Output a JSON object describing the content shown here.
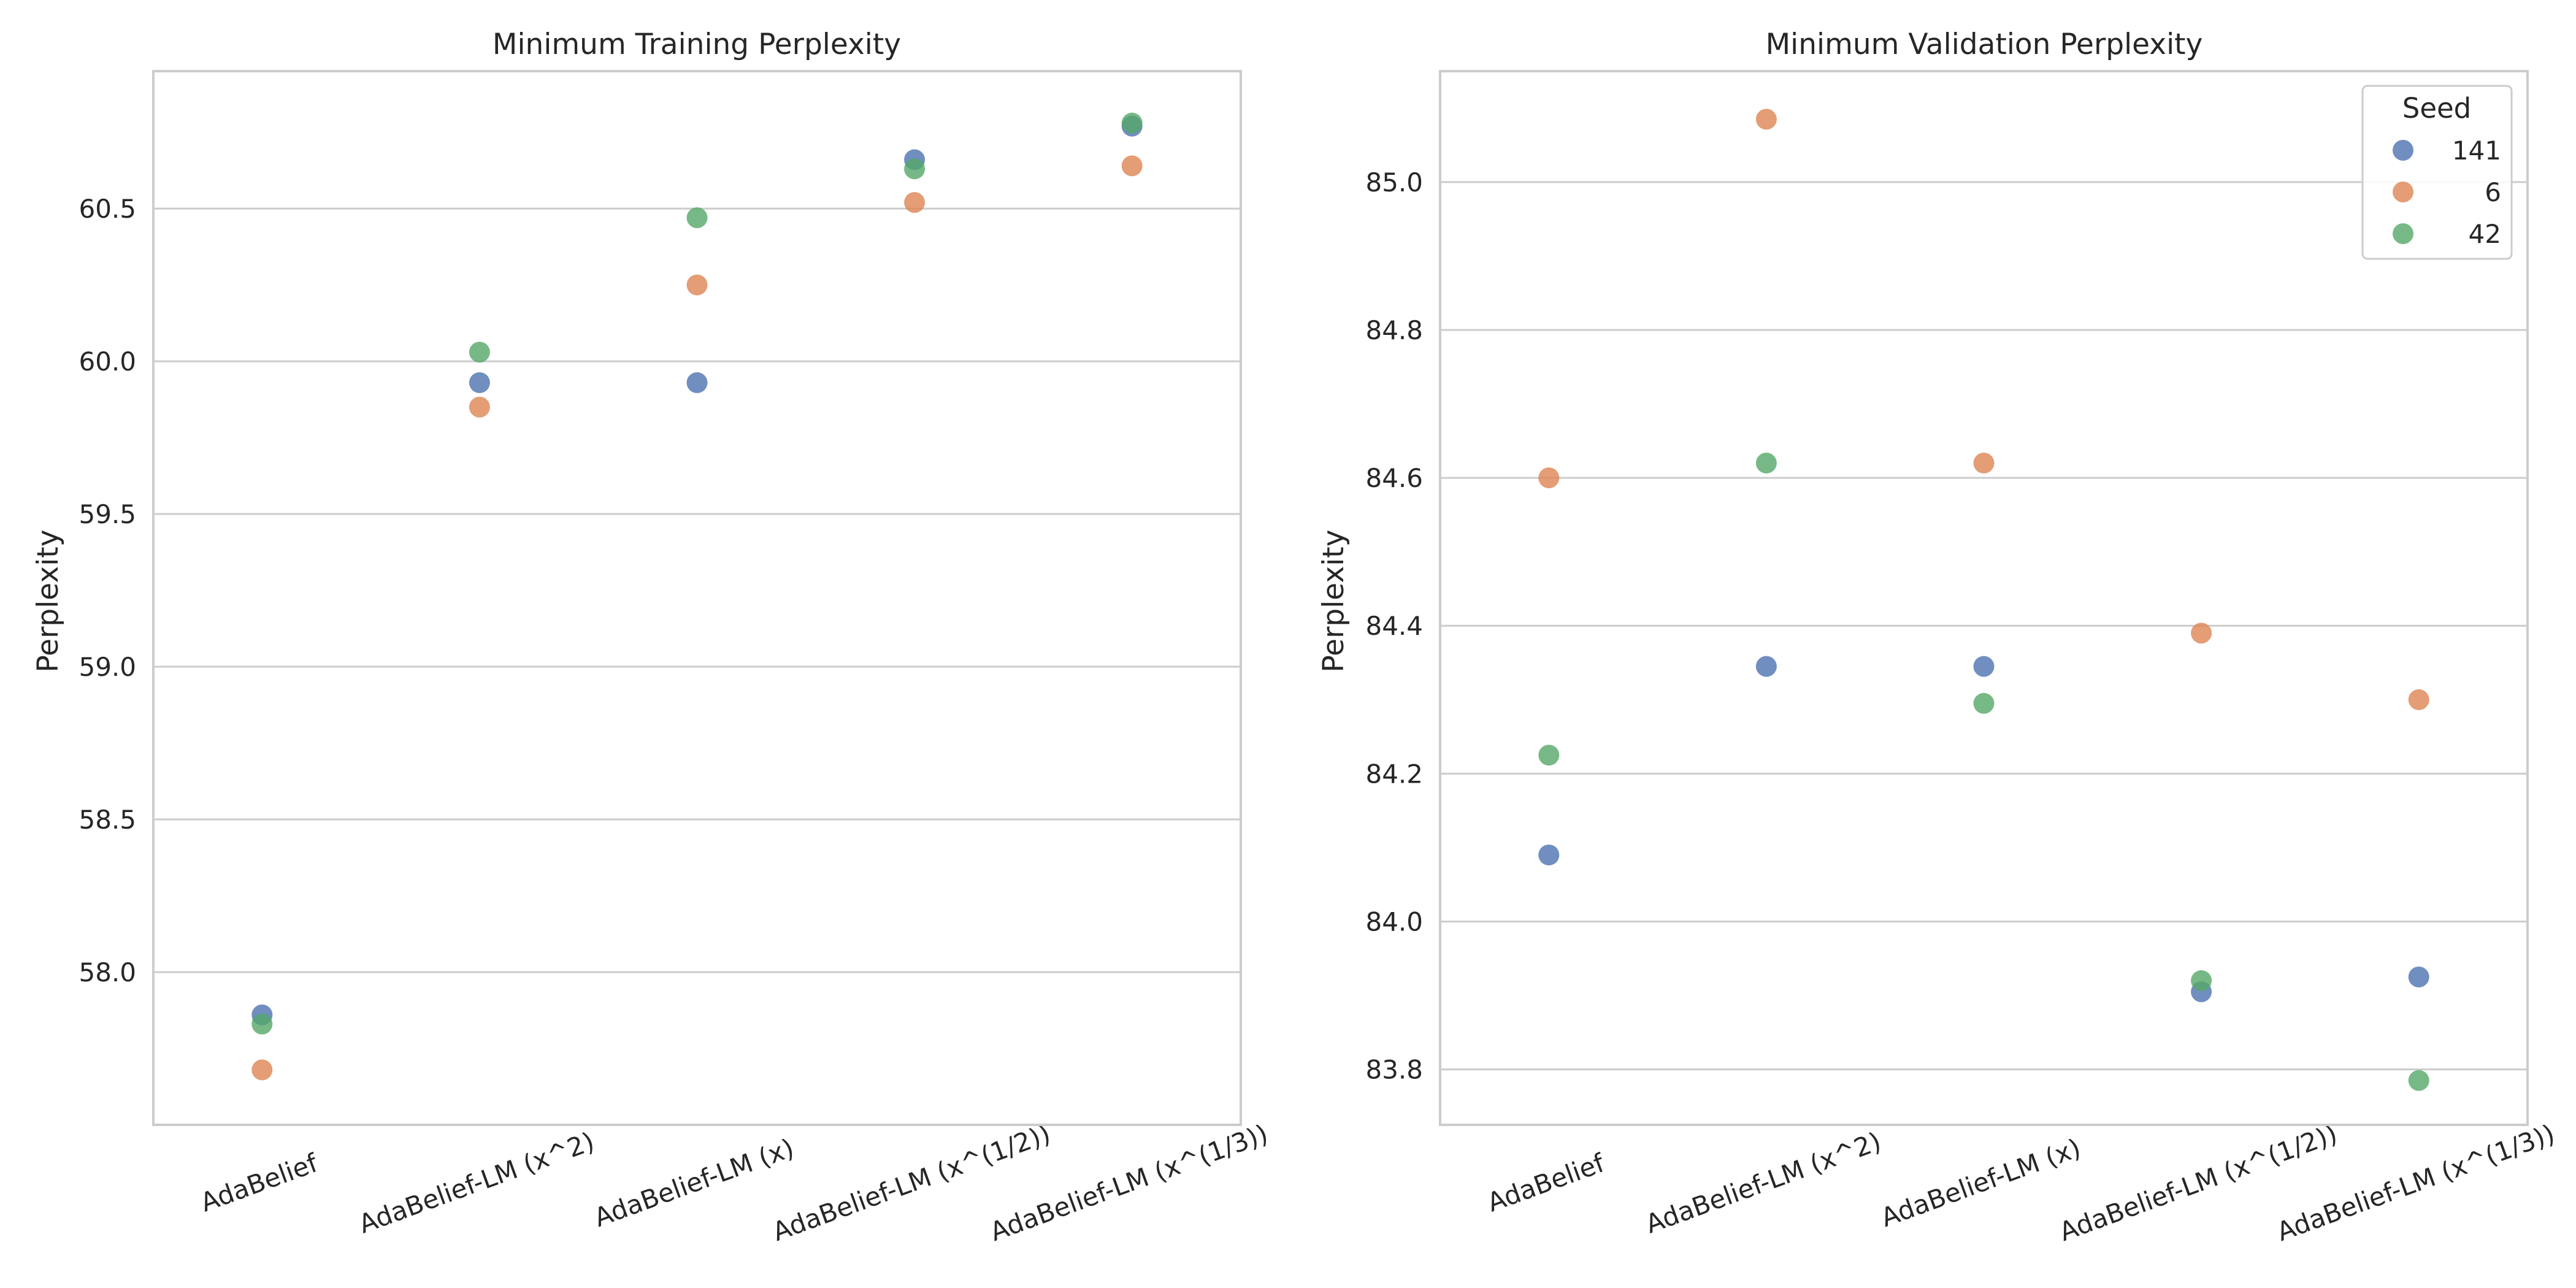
{
  "chart_data": [
    {
      "type": "scatter",
      "title": "Minimum Training Perplexity",
      "xlabel": "",
      "ylabel": "Perplexity",
      "categories": [
        "AdaBelief",
        "AdaBelief-LM (x^2)",
        "AdaBelief-LM (x)",
        "AdaBelief-LM (x^(1/2))",
        "AdaBelief-LM (x^(1/3))"
      ],
      "ylim": [
        57.5,
        60.95
      ],
      "yticks": [
        58.0,
        58.5,
        59.0,
        59.5,
        60.0,
        60.5
      ],
      "grid": "horizontal",
      "legend": null,
      "series": [
        {
          "name": "141",
          "values": [
            57.86,
            59.93,
            59.93,
            60.66,
            60.77
          ]
        },
        {
          "name": "6",
          "values": [
            57.68,
            59.85,
            60.25,
            60.52,
            60.64
          ]
        },
        {
          "name": "42",
          "values": [
            57.83,
            60.03,
            60.47,
            60.63,
            60.78
          ]
        }
      ]
    },
    {
      "type": "scatter",
      "title": "Minimum Validation Perplexity",
      "xlabel": "",
      "ylabel": "Perplexity",
      "categories": [
        "AdaBelief",
        "AdaBelief-LM (x^2)",
        "AdaBelief-LM (x)",
        "AdaBelief-LM (x^(1/2))",
        "AdaBelief-LM (x^(1/3))"
      ],
      "ylim": [
        83.725,
        85.15
      ],
      "yticks": [
        83.8,
        84.0,
        84.2,
        84.4,
        84.6,
        84.8,
        85.0
      ],
      "grid": "horizontal",
      "legend": "top-right",
      "series": [
        {
          "name": "141",
          "values": [
            84.09,
            84.345,
            84.345,
            83.905,
            83.925
          ]
        },
        {
          "name": "6",
          "values": [
            84.6,
            85.085,
            84.62,
            84.39,
            84.3
          ]
        },
        {
          "name": "42",
          "values": [
            84.225,
            84.62,
            84.295,
            83.92,
            83.785
          ]
        }
      ]
    }
  ],
  "legend": {
    "title": "Seed",
    "entries": [
      "141",
      "6",
      "42"
    ]
  },
  "colors": {
    "141": "#4c72b0",
    "6": "#dd8452",
    "42": "#55a868",
    "grid": "#cccccc",
    "frame": "#cccccc"
  }
}
